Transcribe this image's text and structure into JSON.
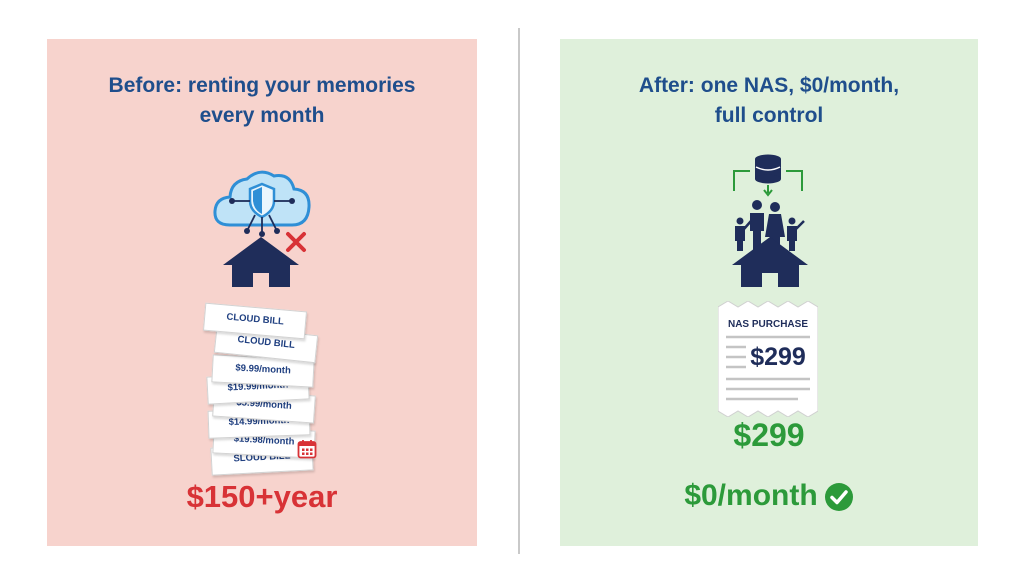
{
  "before": {
    "title_line1": "Before: renting your memories",
    "title_line2": "every month",
    "bills": [
      "CLOUD BILL",
      "CLOUD BILL",
      "$9.99/month",
      "$19.99/month",
      "$5.99/month",
      "$14.99/month",
      "$19.98/month",
      "SLOUD BILL"
    ],
    "total": "$150+year",
    "icons": [
      "cloud-shield-icon",
      "house-icon",
      "x-mark-icon",
      "calendar-icon"
    ]
  },
  "after": {
    "title_line1": "After: one NAS, $0/month,",
    "title_line2": "full control",
    "receipt_title": "NAS PURCHASE",
    "receipt_amount": "$299",
    "price": "$299",
    "monthly": "$0/month",
    "icons": [
      "nas-server-icon",
      "family-icon",
      "house-icon",
      "checkmark-icon"
    ]
  },
  "colors": {
    "before_bg": "#f7d3cd",
    "after_bg": "#dff0db",
    "title": "#1f4e8c",
    "red": "#d83236",
    "green": "#2c9a3a",
    "navy": "#1f2d5a"
  }
}
